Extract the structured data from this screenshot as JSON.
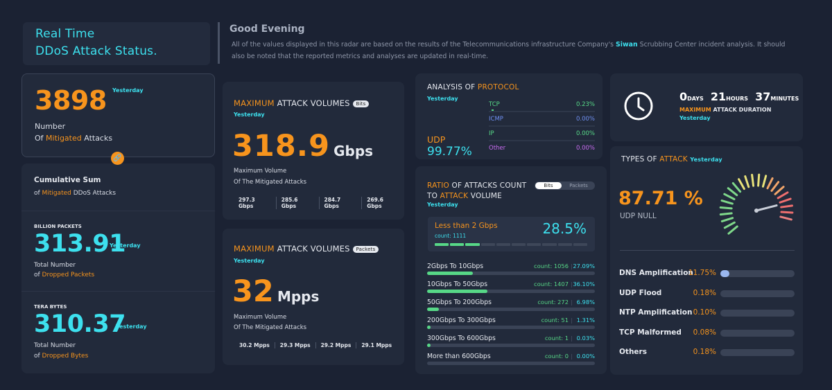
{
  "header": {
    "title_line1": "Real Time",
    "title_line2": "DDoS Attack Status.",
    "greeting": "Good Evening",
    "desc_part1": "All of the values displayed in this radar are based on the results of the Telecommunications infrastructure Company's ",
    "desc_brand": "Siwan",
    "desc_part2": " Scrubbing Center incident analysis. It should also be noted that the reported metrics and analyses are updated in real-time."
  },
  "mitigated": {
    "value": "3898",
    "period": "Yesterday",
    "label1": "Number",
    "label2_pre": "Of ",
    "label2_hl": "Mitigated",
    "label2_post": " Attacks"
  },
  "cumulative": {
    "title": "Cumulative Sum",
    "sub_pre": "of ",
    "sub_hl": "Mitigated",
    "sub_post": " DDoS Attacks",
    "packets": {
      "unit": "BILLION PACKETS",
      "value": "313.91",
      "period": "Yesterday",
      "label1": "Total Number",
      "label2_pre": "of ",
      "label2_hl": "Dropped Packets"
    },
    "bytes": {
      "unit": "TERA BYTES",
      "value": "310.37",
      "period": "Yesterday",
      "label1": "Total Number",
      "label2_pre": "of ",
      "label2_hl": "Dropped Bytes"
    }
  },
  "volume_bits": {
    "title_hl": "MAXIMUM",
    "title_rest": " ATTACK VOLUMES",
    "pill": "Bits",
    "period": "Yesterday",
    "value": "318.9",
    "unit": "Gbps",
    "label1": "Maximum Volume",
    "label2": "Of The Mitigated Attacks",
    "history": [
      "297.3 Gbps",
      "285.6 Gbps",
      "284.7 Gbps",
      "269.6 Gbps"
    ]
  },
  "volume_packets": {
    "title_hl": "MAXIMUM",
    "title_rest": " ATTACK VOLUMES",
    "pill": "Packets",
    "period": "Yesterday",
    "value": "32",
    "unit": "Mpps",
    "label1": "Maximum Volume",
    "label2": "Of The Mitigated Attacks",
    "history": [
      "30.2 Mpps",
      "29.3 Mpps",
      "29.2 Mpps",
      "29.1 Mpps"
    ]
  },
  "protocol": {
    "title_pre": "ANALYSIS OF ",
    "title_hl": "PROTOCOL",
    "period": "Yesterday",
    "main_name": "UDP",
    "main_value": "99.77%",
    "rows": [
      {
        "name": "TCP",
        "value": "0.23%",
        "color": "#57d887"
      },
      {
        "name": "ICMP",
        "value": "0.00%",
        "color": "#6f8ff0"
      },
      {
        "name": "IP",
        "value": "0.00%",
        "color": "#57d887"
      },
      {
        "name": "Other",
        "value": "0.00%",
        "color": "#c86cf0"
      }
    ]
  },
  "ratio": {
    "title_hl1": "RATIO",
    "title_mid": " OF ATTACKS COUNT",
    "title_line2_pre": "TO ",
    "title_hl2": "ATTACK",
    "title_line2_post": " VOLUME",
    "period": "Yesterday",
    "toggle_on": "Bits",
    "toggle_off": "Packets",
    "highlight": {
      "name": "Less than 2 Gbps",
      "count": "count: 1111",
      "pct": "28.5%",
      "fraction": 0.285
    },
    "rows": [
      {
        "name": "2Gbps To 10Gbps",
        "count": "count: 1056",
        "pct": "27.09%",
        "fraction": 0.2709
      },
      {
        "name": "10Gbps To 50Gbps",
        "count": "count: 1407",
        "pct": "36.10%",
        "fraction": 0.361
      },
      {
        "name": "50Gbps To 200Gbps",
        "count": "count: 272",
        "pct": "6.98%",
        "fraction": 0.0698
      },
      {
        "name": "200Gbps To 300Gbps",
        "count": "count: 51",
        "pct": "1.31%",
        "fraction": 0.0131
      },
      {
        "name": "300Gbps To 600Gbps",
        "count": "count: 1",
        "pct": "0.03%",
        "fraction": 0.0003
      },
      {
        "name": "More than 600Gbps",
        "count": "count: 0",
        "pct": "0.00%",
        "fraction": 0
      }
    ]
  },
  "duration": {
    "days": "0",
    "days_unit": "DAYS",
    "hours": "21",
    "hours_unit": "HOURS",
    "minutes": "37",
    "minutes_unit": "MINUTES",
    "label_hl": "MAXIMUM",
    "label_rest": " ATTACK DURATION",
    "period": "Yesterday"
  },
  "types": {
    "title_pre": "TYPES OF ",
    "title_hl": "ATTACK",
    "period": "Yesterday",
    "main_value": "87.71 %",
    "main_label": "UDP NULL",
    "gauge_fraction": 0.8771,
    "rows": [
      {
        "name": "DNS Amplification",
        "pct": "11.75%",
        "fraction": 0.1175
      },
      {
        "name": "UDP Flood",
        "pct": "0.18%",
        "fraction": 0.0018
      },
      {
        "name": "NTP Amplification",
        "pct": "0.10%",
        "fraction": 0.001
      },
      {
        "name": "TCP Malformed",
        "pct": "0.08%",
        "fraction": 0.0008
      },
      {
        "name": "Others",
        "pct": "0.18%",
        "fraction": 0.0018
      }
    ]
  }
}
